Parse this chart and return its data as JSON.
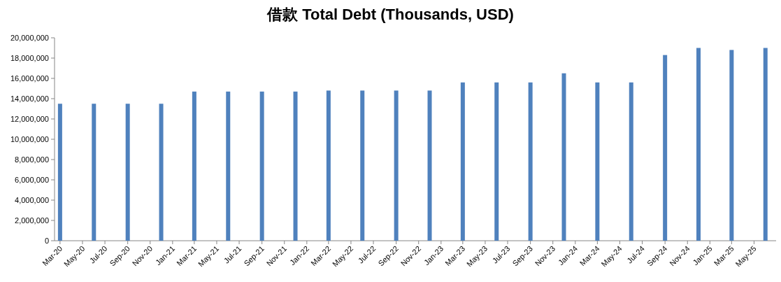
{
  "chart_data": {
    "type": "bar",
    "title": "借款 Total Debt (Thousands, USD)",
    "color": "#4f81bd",
    "x": [
      "2020-03",
      "2020-06",
      "2020-09",
      "2020-12",
      "2021-03",
      "2021-06",
      "2021-09",
      "2021-12",
      "2022-03",
      "2022-06",
      "2022-09",
      "2022-12",
      "2023-03",
      "2023-06",
      "2023-09",
      "2023-12",
      "2024-03",
      "2024-06",
      "2024-09",
      "2024-12",
      "2025-03",
      "2025-06"
    ],
    "values": [
      13500000,
      13500000,
      13500000,
      13500000,
      14700000,
      14700000,
      14700000,
      14700000,
      14800000,
      14800000,
      14800000,
      14800000,
      15600000,
      15600000,
      15600000,
      16500000,
      15600000,
      15600000,
      18300000,
      19000000,
      18800000,
      19000000
    ],
    "xlim": [
      "2020-02-15",
      "2025-06-30"
    ],
    "xticks": [
      {
        "value": "2020-03",
        "label": "Mar-20"
      },
      {
        "value": "2020-05",
        "label": "May-20"
      },
      {
        "value": "2020-07",
        "label": "Jul-20"
      },
      {
        "value": "2020-09",
        "label": "Sep-20"
      },
      {
        "value": "2020-11",
        "label": "Nov-20"
      },
      {
        "value": "2021-01",
        "label": "Jan-21"
      },
      {
        "value": "2021-03",
        "label": "Mar-21"
      },
      {
        "value": "2021-05",
        "label": "May-21"
      },
      {
        "value": "2021-07",
        "label": "Jul-21"
      },
      {
        "value": "2021-09",
        "label": "Sep-21"
      },
      {
        "value": "2021-11",
        "label": "Nov-21"
      },
      {
        "value": "2022-01",
        "label": "Jan-22"
      },
      {
        "value": "2022-03",
        "label": "Mar-22"
      },
      {
        "value": "2022-05",
        "label": "May-22"
      },
      {
        "value": "2022-07",
        "label": "Jul-22"
      },
      {
        "value": "2022-09",
        "label": "Sep-22"
      },
      {
        "value": "2022-11",
        "label": "Nov-22"
      },
      {
        "value": "2023-01",
        "label": "Jan-23"
      },
      {
        "value": "2023-03",
        "label": "Mar-23"
      },
      {
        "value": "2023-05",
        "label": "May-23"
      },
      {
        "value": "2023-07",
        "label": "Jul-23"
      },
      {
        "value": "2023-09",
        "label": "Sep-23"
      },
      {
        "value": "2023-11",
        "label": "Nov-23"
      },
      {
        "value": "2024-01",
        "label": "Jan-24"
      },
      {
        "value": "2024-03",
        "label": "Mar-24"
      },
      {
        "value": "2024-05",
        "label": "May-24"
      },
      {
        "value": "2024-07",
        "label": "Jul-24"
      },
      {
        "value": "2024-09",
        "label": "Sep-24"
      },
      {
        "value": "2024-11",
        "label": "Nov-24"
      },
      {
        "value": "2025-01",
        "label": "Jan-25"
      },
      {
        "value": "2025-03",
        "label": "Mar-25"
      },
      {
        "value": "2025-05",
        "label": "May-25"
      }
    ],
    "ylim": [
      0,
      20000000
    ],
    "yticks": [
      {
        "value": 0,
        "label": "0"
      },
      {
        "value": 2000000,
        "label": "2,000,000"
      },
      {
        "value": 4000000,
        "label": "4,000,000"
      },
      {
        "value": 6000000,
        "label": "6,000,000"
      },
      {
        "value": 8000000,
        "label": "8,000,000"
      },
      {
        "value": 10000000,
        "label": "10,000,000"
      },
      {
        "value": 12000000,
        "label": "12,000,000"
      },
      {
        "value": 14000000,
        "label": "14,000,000"
      },
      {
        "value": 16000000,
        "label": "16,000,000"
      },
      {
        "value": 18000000,
        "label": "18,000,000"
      },
      {
        "value": 20000000,
        "label": "20,000,000"
      }
    ]
  }
}
